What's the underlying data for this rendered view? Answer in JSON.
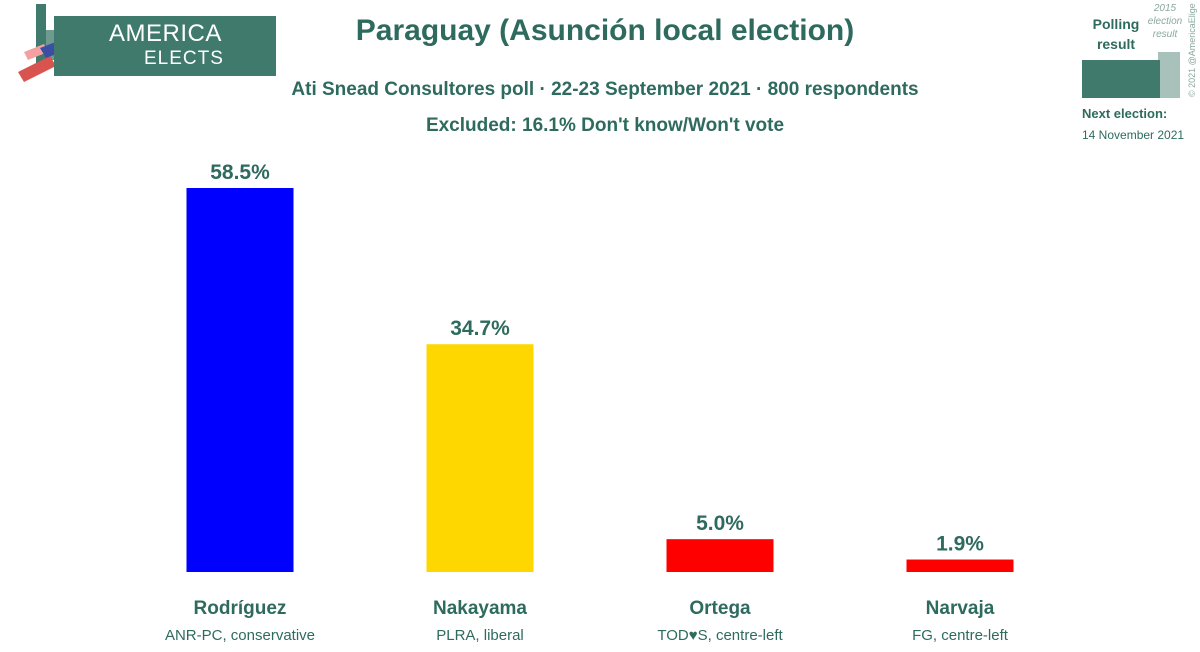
{
  "branding": {
    "logo_line1": "AMERICA",
    "logo_line2": "ELECTS",
    "copyright": "© 2021 @AmericaElige"
  },
  "legend": {
    "polling_label": "Polling result",
    "previous_label": "2015 election result",
    "next_election_label": "Next election:",
    "next_election_date": "14 November 2021"
  },
  "colors": {
    "text": "#2e6b5e",
    "brand": "#3f7a6d",
    "previous": "#a8c2bb"
  },
  "chart_data": {
    "type": "bar",
    "title": "Paraguay (Asunción local election)",
    "subtitle": "Ati Snead Consultores poll · 22-23 September 2021 · 800 respondents",
    "note": "Excluded: 16.1% Don't know/Won't vote",
    "ylim": [
      0,
      58.5
    ],
    "grid": false,
    "legend_position": "top-right",
    "categories": [
      "Rodríguez",
      "Nakayama",
      "Ortega",
      "Narvaja"
    ],
    "category_subtitles": [
      "ANR-PC, conservative",
      "PLRA, liberal",
      "TOD♥S, centre-left",
      "FG, centre-left"
    ],
    "values": [
      58.5,
      34.7,
      5.0,
      1.9
    ],
    "value_labels": [
      "58.5%",
      "34.7%",
      "5.0%",
      "1.9%"
    ],
    "bar_colors": [
      "#0000ff",
      "#ffd700",
      "#ff0000",
      "#ff0000"
    ]
  }
}
